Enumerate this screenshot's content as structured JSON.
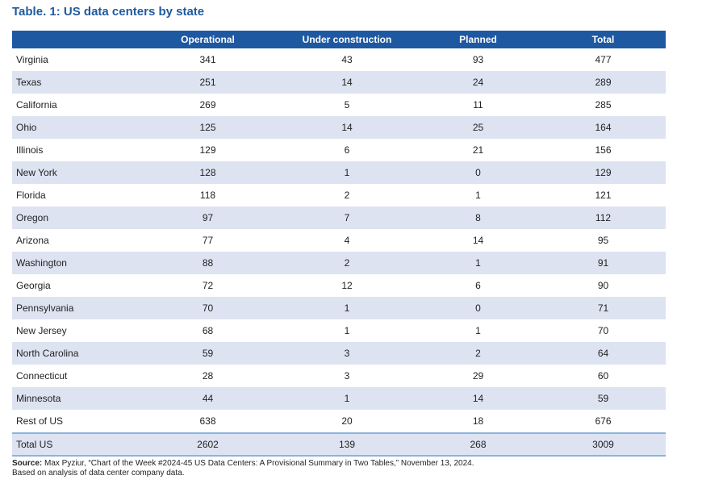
{
  "title": "Table. 1: US data centers by state",
  "table": {
    "headers": [
      "",
      "Operational",
      "Under construction",
      "Planned",
      "Total"
    ],
    "rows": [
      [
        "Virginia",
        "341",
        "43",
        "93",
        "477"
      ],
      [
        "Texas",
        "251",
        "14",
        "24",
        "289"
      ],
      [
        "California",
        "269",
        "5",
        "11",
        "285"
      ],
      [
        "Ohio",
        "125",
        "14",
        "25",
        "164"
      ],
      [
        "Illinois",
        "129",
        "6",
        "21",
        "156"
      ],
      [
        "New York",
        "128",
        "1",
        "0",
        "129"
      ],
      [
        "Florida",
        "118",
        "2",
        "1",
        "121"
      ],
      [
        "Oregon",
        "97",
        "7",
        "8",
        "112"
      ],
      [
        "Arizona",
        "77",
        "4",
        "14",
        "95"
      ],
      [
        "Washington",
        "88",
        "2",
        "1",
        "91"
      ],
      [
        "Georgia",
        "72",
        "12",
        "6",
        "90"
      ],
      [
        "Pennsylvania",
        "70",
        "1",
        "0",
        "71"
      ],
      [
        "New Jersey",
        "68",
        "1",
        "1",
        "70"
      ],
      [
        "North Carolina",
        "59",
        "3",
        "2",
        "64"
      ],
      [
        "Connecticut",
        "28",
        "3",
        "29",
        "60"
      ],
      [
        "Minnesota",
        "44",
        "1",
        "14",
        "59"
      ],
      [
        "Rest of US",
        "638",
        "20",
        "18",
        "676"
      ]
    ],
    "total_row": [
      "Total US",
      "2602",
      "139",
      "268",
      "3009"
    ]
  },
  "footnote": {
    "source_label": "Source:",
    "source_text": " Max Pyziur, “Chart of the Week #2024-45 US Data Centers: A Provisional Summary in Two Tables,” November 13, 2024.",
    "note": "Based on analysis of data center company data."
  },
  "colors": {
    "title": "#1f5a9e",
    "header_bg": "#1e58a1",
    "stripe_bg": "#dde3f1",
    "total_border": "#8ab4dc"
  }
}
